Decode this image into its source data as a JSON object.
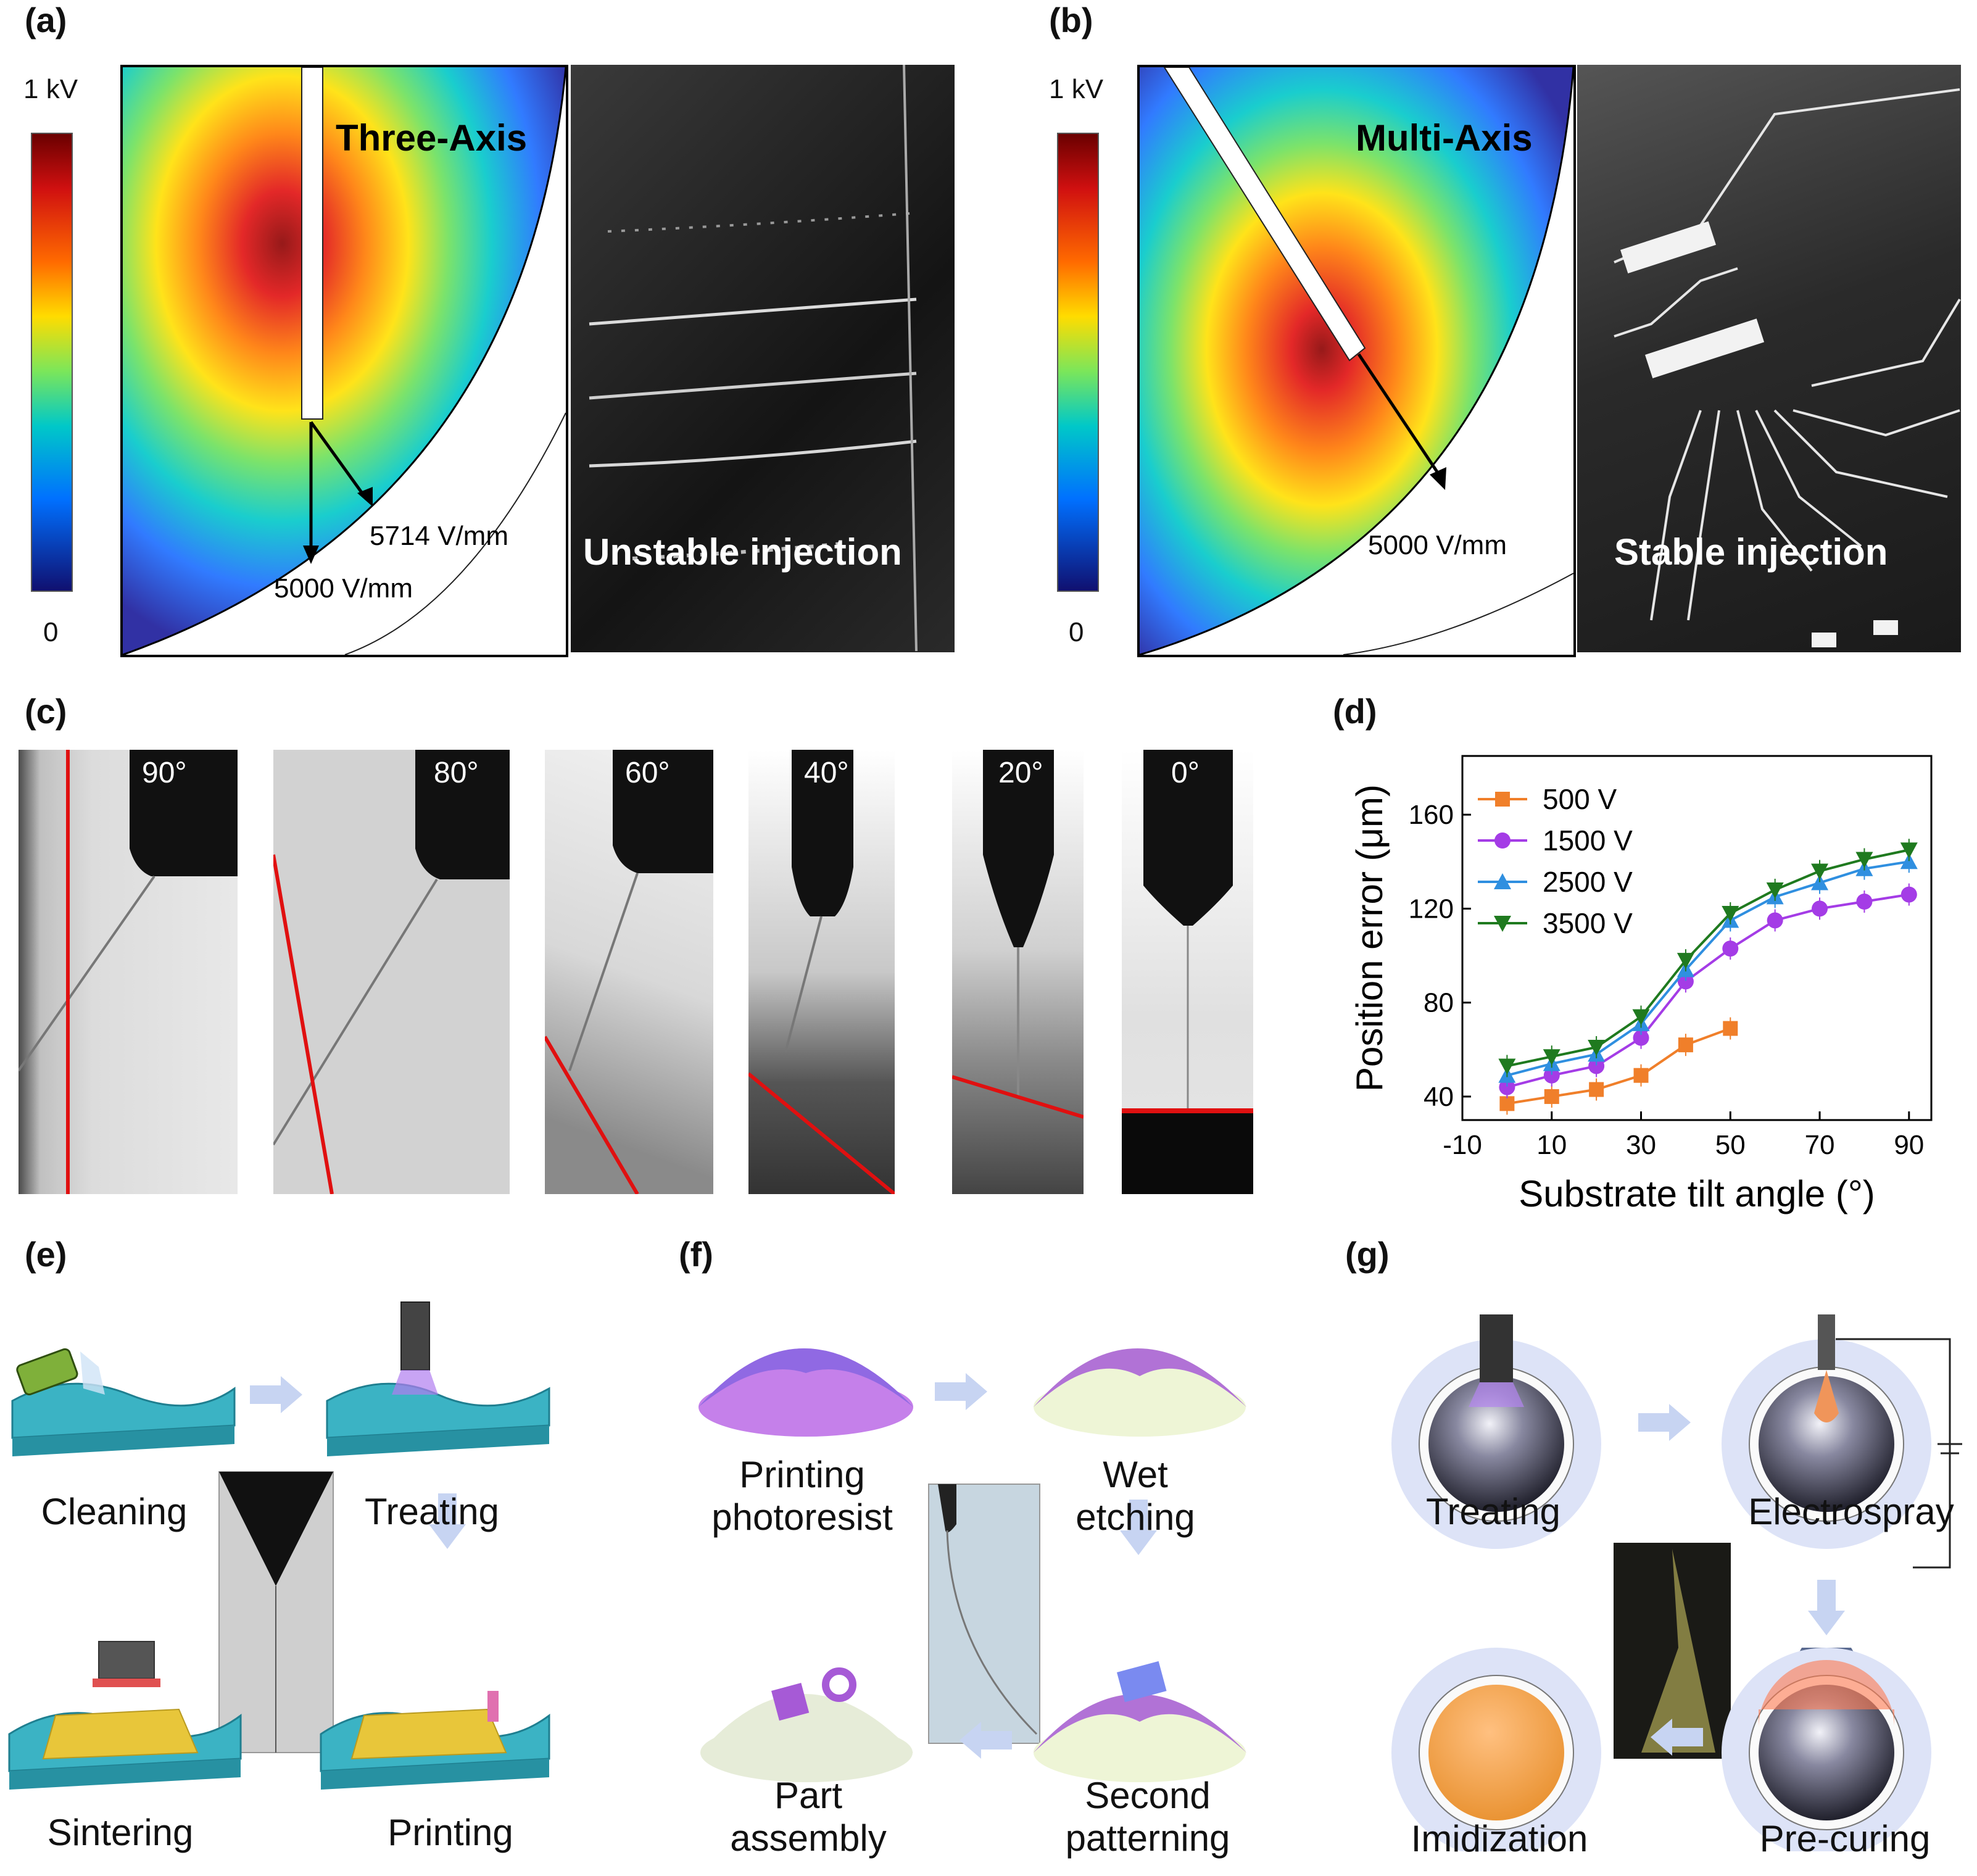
{
  "panel_labels": {
    "a": "(a)",
    "b": "(b)",
    "c": "(c)",
    "d": "(d)",
    "e": "(e)",
    "f": "(f)",
    "g": "(g)"
  },
  "panel_a": {
    "colorbar_max": "1 kV",
    "colorbar_min": "0",
    "title": "Three-Axis",
    "field_1": "5714 V/mm",
    "field_2": "5000 V/mm",
    "photo_caption": "Unstable injection"
  },
  "panel_b": {
    "colorbar_max": "1 kV",
    "colorbar_min": "0",
    "title": "Multi-Axis",
    "field_1": "5000 V/mm",
    "photo_caption": "Stable injection"
  },
  "panel_c": {
    "angles": [
      "90°",
      "80°",
      "60°",
      "40°",
      "20°",
      "0°"
    ]
  },
  "panel_e": {
    "steps": [
      "Cleaning",
      "Treating",
      "Printing",
      "Sintering"
    ]
  },
  "panel_f": {
    "steps": [
      "Printing\nphotoresist",
      "Wet\netching",
      "Second\npatterning",
      "Part\nassembly"
    ]
  },
  "panel_g": {
    "steps": [
      "Treating",
      "Electrospray",
      "Pre-curing",
      "Imidization"
    ]
  },
  "colors": {
    "s500": "#f07f2a",
    "s1500": "#a43ce6",
    "s2500": "#2f8fe0",
    "s3500": "#1f7a1f",
    "red_line": "#e01010"
  },
  "chart_data": {
    "type": "line",
    "xlabel": "Substrate tilt angle (°)",
    "ylabel": "Position error (μm)",
    "xlim": [
      -10,
      95
    ],
    "ylim": [
      30,
      185
    ],
    "xticks": [
      -10,
      10,
      30,
      50,
      70,
      90
    ],
    "yticks": [
      40,
      80,
      120,
      160
    ],
    "legend_position": "top-left",
    "series": [
      {
        "name": "500 V",
        "marker": "square",
        "x": [
          0,
          10,
          20,
          30,
          40,
          50
        ],
        "values": [
          37,
          40,
          43,
          49,
          62,
          69
        ]
      },
      {
        "name": "1500 V",
        "marker": "circle",
        "x": [
          0,
          10,
          20,
          30,
          40,
          50,
          60,
          70,
          80,
          90
        ],
        "values": [
          44,
          49,
          53,
          65,
          89,
          103,
          115,
          120,
          123,
          126
        ]
      },
      {
        "name": "2500 V",
        "marker": "triangle-up",
        "x": [
          0,
          10,
          20,
          30,
          40,
          50,
          60,
          70,
          80,
          90
        ],
        "values": [
          49,
          54,
          58,
          71,
          94,
          115,
          125,
          131,
          137,
          140
        ]
      },
      {
        "name": "3500 V",
        "marker": "triangle-down",
        "x": [
          0,
          10,
          20,
          30,
          40,
          50,
          60,
          70,
          80,
          90
        ],
        "values": [
          53,
          57,
          61,
          74,
          98,
          118,
          128,
          136,
          141,
          145
        ]
      }
    ]
  }
}
